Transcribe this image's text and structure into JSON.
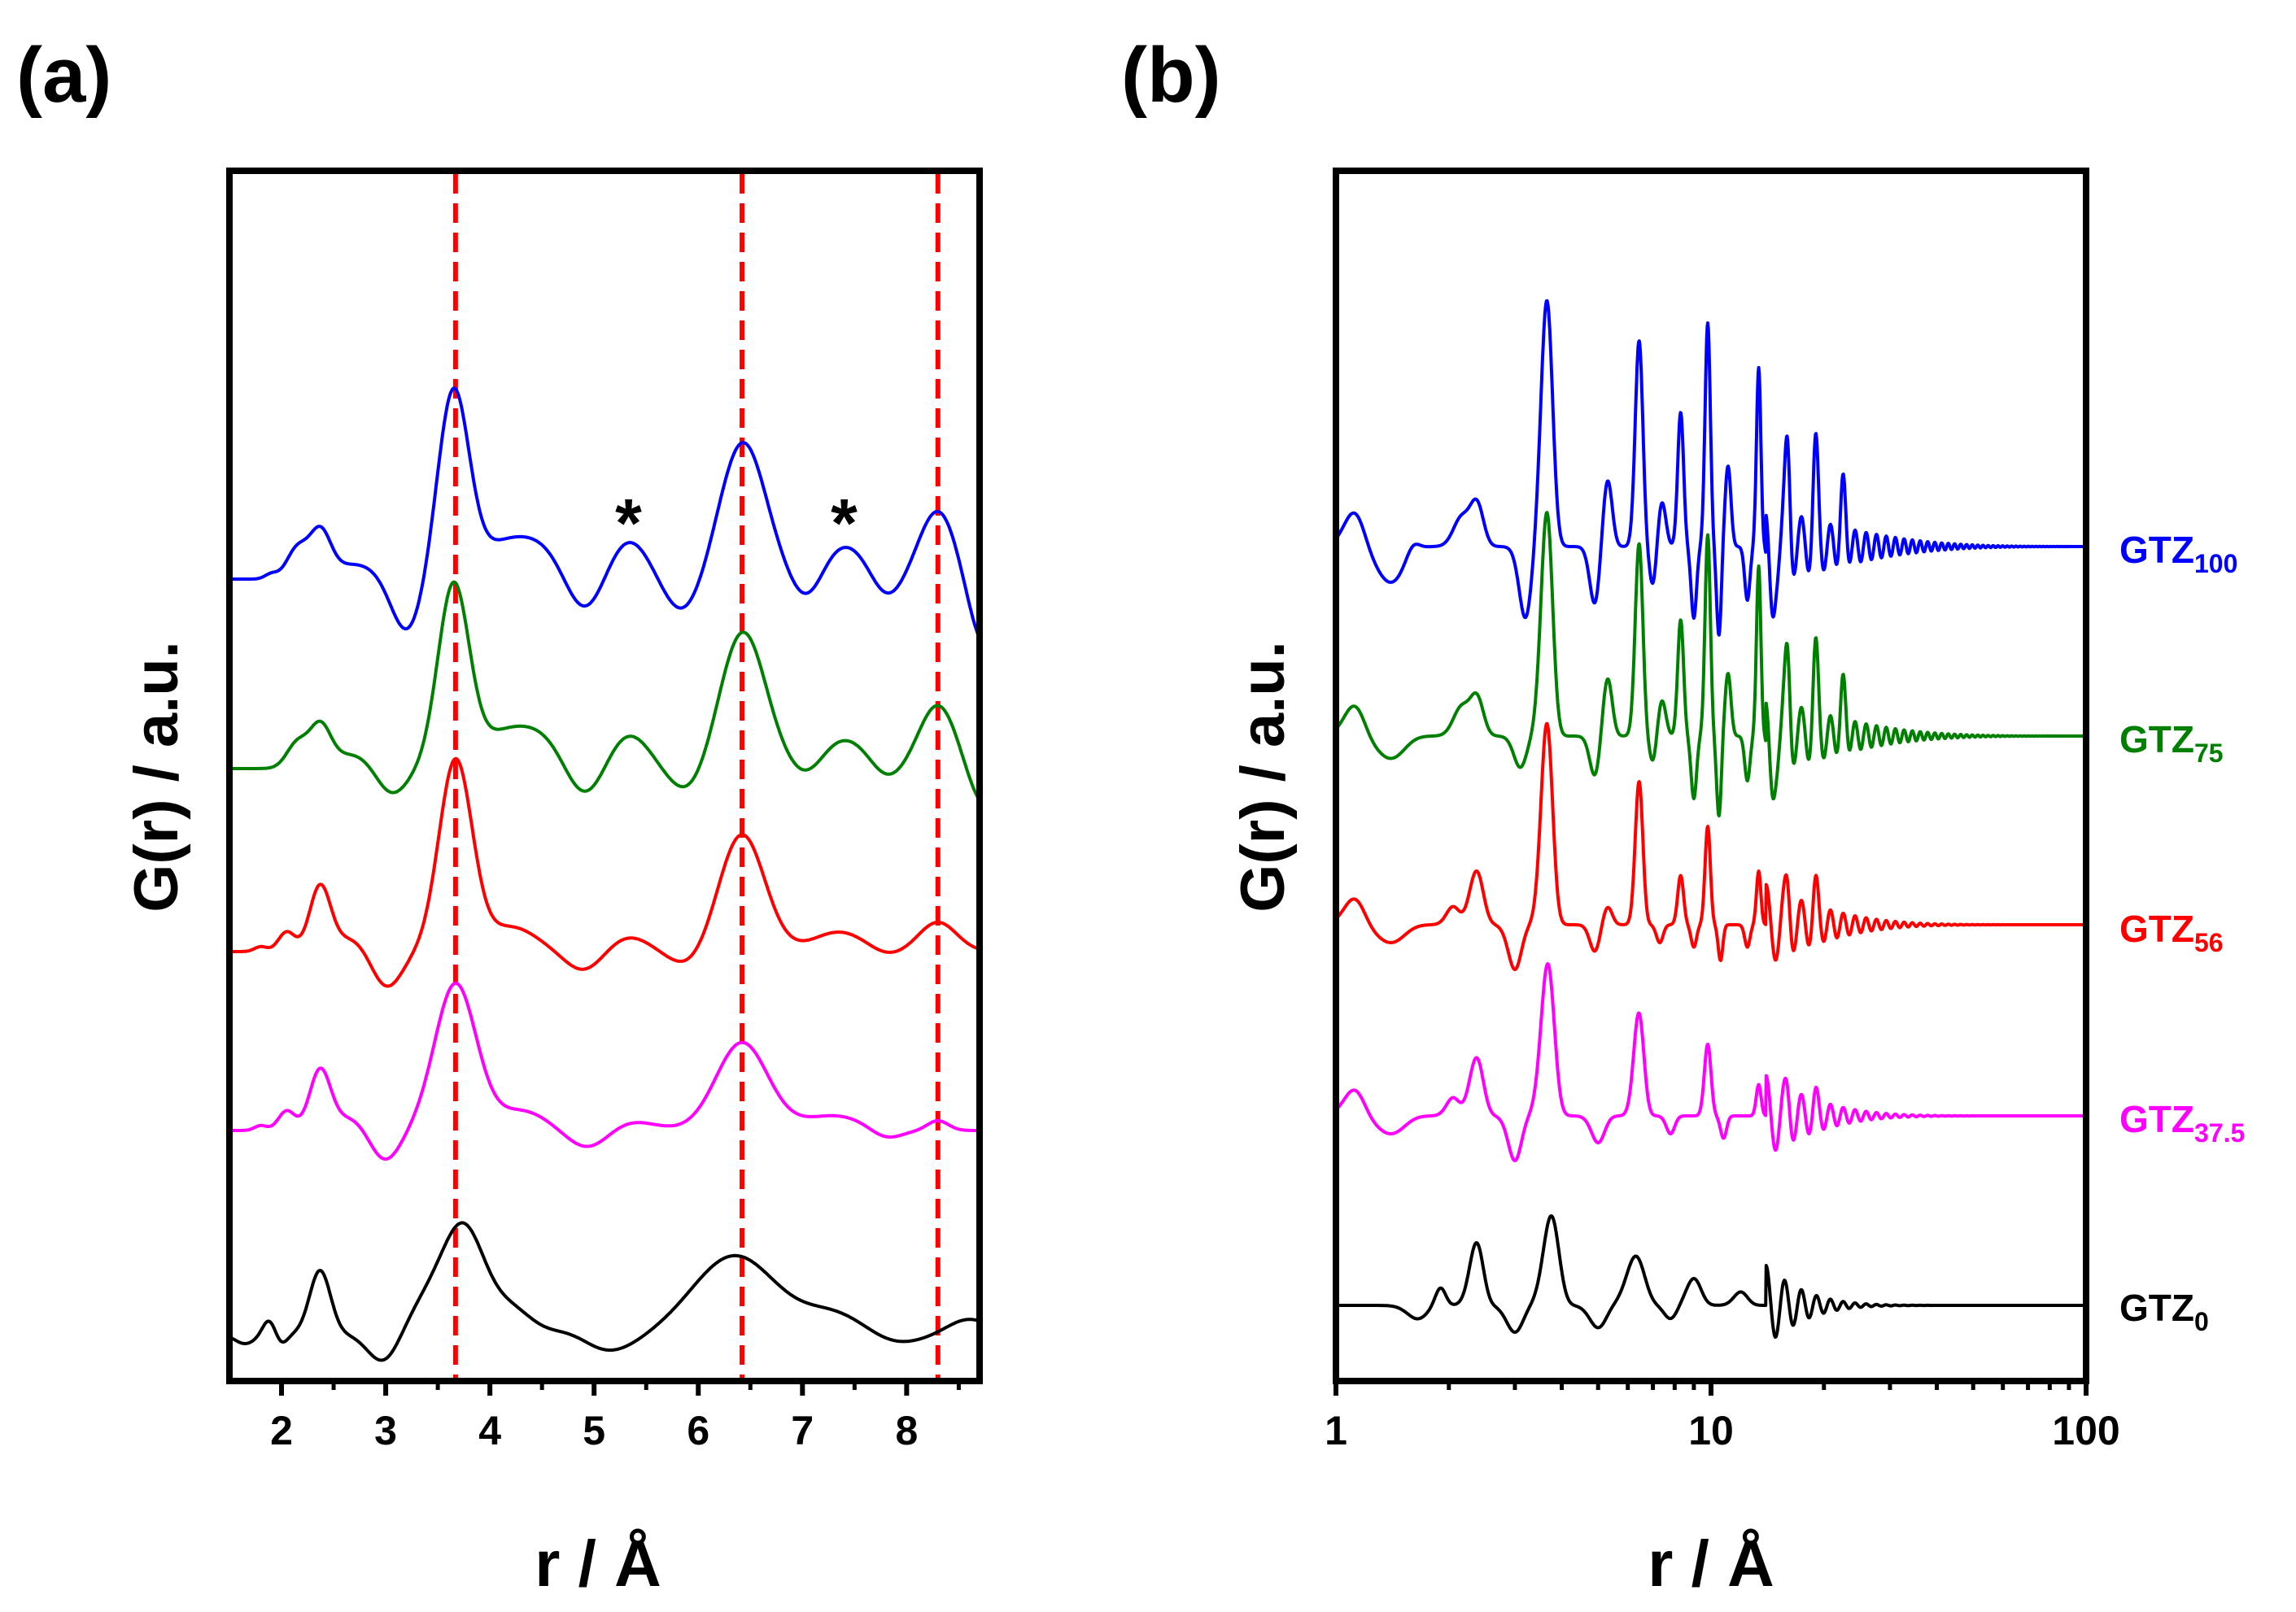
{
  "chart_data": [
    {
      "panel_label": "(a)",
      "type": "line",
      "title": "",
      "xlabel": "r / Å",
      "ylabel": "G(r) / a.u.",
      "xlim": [
        1.5,
        8.7
      ],
      "x_ticks": [
        2,
        3,
        4,
        5,
        6,
        7,
        8
      ],
      "x_tick_labels": [
        "2",
        "3",
        "4",
        "5",
        "6",
        "7",
        "8"
      ],
      "x_scale": "linear",
      "y_ticks_shown": false,
      "reference_lines": [
        3.67,
        6.42,
        8.3
      ],
      "reference_line_color": "#ff0000",
      "annotations": [
        {
          "text": "*",
          "x": 5.33
        },
        {
          "text": "*",
          "x": 7.4
        }
      ],
      "series": [
        {
          "name": "GTZ100",
          "color": "#0000ff",
          "offset": 4.0,
          "peaks": [
            [
              1.9,
              0.1,
              0.06
            ],
            [
              2.15,
              0.6,
              0.1
            ],
            [
              2.37,
              0.9,
              0.1
            ],
            [
              2.7,
              0.3,
              0.25
            ],
            [
              3.65,
              3.8,
              0.15
            ],
            [
              4.1,
              0.6,
              0.25
            ],
            [
              4.5,
              0.6,
              0.25
            ],
            [
              5.33,
              0.8,
              0.2
            ],
            [
              6.43,
              2.8,
              0.22
            ],
            [
              7.4,
              0.7,
              0.25
            ],
            [
              8.3,
              1.4,
              0.18
            ]
          ],
          "dips": [
            [
              3.2,
              1.1,
              0.15
            ],
            [
              4.9,
              0.8,
              0.18
            ],
            [
              5.85,
              0.7,
              0.18
            ],
            [
              7.05,
              0.6,
              0.15
            ],
            [
              7.8,
              0.5,
              0.15
            ],
            [
              8.75,
              1.4,
              0.15
            ]
          ]
        },
        {
          "name": "GTZ75",
          "color": "#008000",
          "offset": 3.0,
          "peaks": [
            [
              2.15,
              0.5,
              0.1
            ],
            [
              2.37,
              0.8,
              0.1
            ],
            [
              2.7,
              0.3,
              0.25
            ],
            [
              3.65,
              3.7,
              0.15
            ],
            [
              4.1,
              0.6,
              0.25
            ],
            [
              4.5,
              0.6,
              0.25
            ],
            [
              5.33,
              0.7,
              0.2
            ],
            [
              6.43,
              2.8,
              0.22
            ],
            [
              7.4,
              0.6,
              0.25
            ],
            [
              8.3,
              1.3,
              0.18
            ]
          ],
          "dips": [
            [
              3.05,
              0.6,
              0.15
            ],
            [
              4.9,
              0.7,
              0.18
            ],
            [
              5.9,
              0.5,
              0.18
            ],
            [
              7.05,
              0.3,
              0.15
            ],
            [
              7.8,
              0.3,
              0.15
            ],
            [
              8.75,
              0.8,
              0.15
            ]
          ]
        },
        {
          "name": "GTZ56",
          "color": "#ff0000",
          "offset": 2.0,
          "peaks": [
            [
              1.8,
              0.1,
              0.06
            ],
            [
              2.05,
              0.4,
              0.08
            ],
            [
              2.37,
              1.3,
              0.1
            ],
            [
              2.7,
              0.3,
              0.2
            ],
            [
              3.67,
              3.9,
              0.16
            ],
            [
              4.2,
              0.5,
              0.25
            ],
            [
              5.33,
              0.3,
              0.2
            ],
            [
              6.42,
              2.4,
              0.22
            ],
            [
              7.35,
              0.4,
              0.25
            ],
            [
              8.3,
              0.6,
              0.18
            ]
          ],
          "dips": [
            [
              3.0,
              0.8,
              0.15
            ],
            [
              4.9,
              0.4,
              0.18
            ],
            [
              5.9,
              0.3,
              0.18
            ],
            [
              7.8,
              0.1,
              0.15
            ]
          ]
        },
        {
          "name": "GTZ37.5",
          "color": "#ff00ff",
          "offset": 1.0,
          "peaks": [
            [
              1.8,
              0.1,
              0.06
            ],
            [
              2.05,
              0.4,
              0.08
            ],
            [
              2.37,
              1.2,
              0.1
            ],
            [
              2.7,
              0.3,
              0.2
            ],
            [
              3.67,
              3.0,
              0.2
            ],
            [
              4.3,
              0.4,
              0.25
            ],
            [
              5.33,
              0.2,
              0.25
            ],
            [
              6.42,
              1.8,
              0.25
            ],
            [
              7.3,
              0.3,
              0.3
            ],
            [
              8.3,
              0.2,
              0.1
            ]
          ],
          "dips": [
            [
              2.98,
              0.7,
              0.15
            ],
            [
              4.95,
              0.4,
              0.2
            ],
            [
              7.8,
              0.2,
              0.15
            ]
          ]
        },
        {
          "name": "GTZ0",
          "color": "#000000",
          "offset": 0.0,
          "peaks": [
            [
              1.88,
              0.3,
              0.06
            ],
            [
              2.37,
              1.3,
              0.1
            ],
            [
              3.4,
              0.6,
              0.2
            ],
            [
              3.75,
              2.1,
              0.2
            ],
            [
              4.2,
              0.5,
              0.2
            ],
            [
              4.8,
              0.2,
              0.2
            ],
            [
              6.35,
              1.6,
              0.4
            ],
            [
              7.3,
              0.4,
              0.3
            ],
            [
              8.6,
              0.3,
              0.2
            ]
          ],
          "dips": [
            [
              1.65,
              0.2,
              0.1
            ],
            [
              2.0,
              0.2,
              0.06
            ],
            [
              2.98,
              0.6,
              0.15
            ],
            [
              5.1,
              0.4,
              0.3
            ],
            [
              7.9,
              0.2,
              0.25
            ]
          ]
        }
      ]
    },
    {
      "panel_label": "(b)",
      "type": "line",
      "title": "",
      "xlabel": "r / Å",
      "ylabel": "G(r) / a.u.",
      "xlim": [
        1,
        100
      ],
      "x_scale": "log",
      "x_ticks": [
        1,
        10,
        100
      ],
      "x_tick_labels": [
        "1",
        "10",
        "100"
      ],
      "y_ticks_shown": false,
      "series": [
        {
          "name": "GTZ100",
          "label_base": "GTZ",
          "label_sub": "100",
          "color": "#0000ff",
          "offset": 4.0,
          "damping_length": 25
        },
        {
          "name": "GTZ75",
          "label_base": "GTZ",
          "label_sub": "75",
          "color": "#008000",
          "offset": 3.0,
          "damping_length": 22
        },
        {
          "name": "GTZ56",
          "label_base": "GTZ",
          "label_sub": "56",
          "color": "#ff0000",
          "offset": 2.0,
          "damping_length": 15
        },
        {
          "name": "GTZ37.5",
          "label_base": "GTZ",
          "label_sub": "37.5",
          "color": "#ff00ff",
          "offset": 1.0,
          "damping_length": 12
        },
        {
          "name": "GTZ0",
          "label_base": "GTZ",
          "label_sub": "0",
          "color": "#000000",
          "offset": 0.0,
          "damping_length": 8
        }
      ]
    }
  ]
}
